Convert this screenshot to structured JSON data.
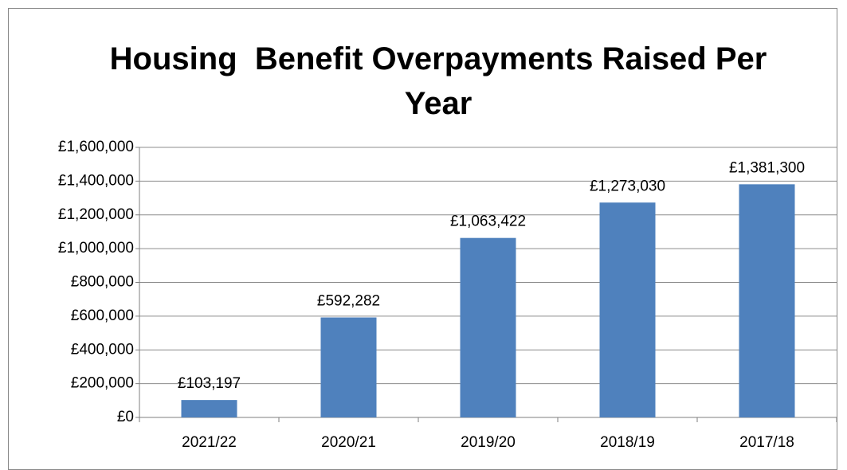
{
  "chart_data": {
    "type": "bar",
    "title": "Housing  Benefit Overpayments Raised Per Year",
    "categories": [
      "2021/22",
      "2020/21",
      "2019/20",
      "2018/19",
      "2017/18"
    ],
    "values": [
      103197,
      592282,
      1063422,
      1273030,
      1381300
    ],
    "value_labels": [
      "£103,197",
      "£592,282",
      "£1,063,422",
      "£1,273,030",
      "£1,381,300"
    ],
    "color": "#4f81bd",
    "ylim": [
      0,
      1600000
    ],
    "yticks": [
      {
        "value": 0,
        "label": "£0"
      },
      {
        "value": 200000,
        "label": "£200,000"
      },
      {
        "value": 400000,
        "label": "£400,000"
      },
      {
        "value": 600000,
        "label": "£600,000"
      },
      {
        "value": 800000,
        "label": "£800,000"
      },
      {
        "value": 1000000,
        "label": "£1,000,000"
      },
      {
        "value": 1200000,
        "label": "£1,200,000"
      },
      {
        "value": 1400000,
        "label": "£1,400,000"
      },
      {
        "value": 1600000,
        "label": "£1,600,000"
      }
    ],
    "grid": true
  }
}
